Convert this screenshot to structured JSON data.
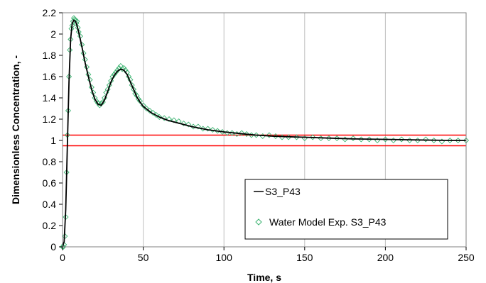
{
  "chart_data": {
    "type": "line",
    "title": "",
    "xlabel": "Time, s",
    "ylabel": "Dimensionless  Concentration, -",
    "xlim": [
      0,
      250
    ],
    "ylim": [
      0,
      2.2
    ],
    "x_ticks": [
      "0",
      "50",
      "100",
      "150",
      "200",
      "250"
    ],
    "y_ticks": [
      "0",
      "0.2",
      "0.4",
      "0.6",
      "0.8",
      "1",
      "1.2",
      "1.4",
      "1.6",
      "1.8",
      "2",
      "2.2"
    ],
    "grid": "vertical",
    "legend_position": "bottom-right",
    "series": [
      {
        "name": "S3_P43",
        "style": "line",
        "color": "#000000",
        "x": [
          0,
          1,
          2,
          3,
          4,
          5,
          6,
          7,
          8,
          9,
          10,
          12,
          14,
          16,
          18,
          20,
          22,
          24,
          26,
          28,
          30,
          32,
          34,
          36,
          38,
          40,
          42,
          44,
          46,
          48,
          50,
          55,
          60,
          65,
          70,
          80,
          90,
          100,
          110,
          120,
          130,
          140,
          150,
          160,
          180,
          200,
          220,
          240,
          250
        ],
        "y": [
          0,
          0.05,
          0.35,
          0.95,
          1.55,
          1.95,
          2.1,
          2.13,
          2.12,
          2.08,
          2.02,
          1.88,
          1.73,
          1.6,
          1.48,
          1.39,
          1.34,
          1.33,
          1.38,
          1.46,
          1.55,
          1.61,
          1.65,
          1.67,
          1.66,
          1.62,
          1.55,
          1.48,
          1.41,
          1.36,
          1.32,
          1.26,
          1.22,
          1.19,
          1.17,
          1.13,
          1.1,
          1.08,
          1.065,
          1.05,
          1.04,
          1.035,
          1.03,
          1.025,
          1.015,
          1.01,
          1.005,
          1.0,
          1.0
        ]
      },
      {
        "name": "Water Model Exp. S3_P43",
        "style": "markers",
        "marker": "diamond",
        "color": "#3cb371",
        "x": [
          0,
          0.5,
          1,
          1.5,
          2,
          2.5,
          3,
          3.5,
          4,
          4.5,
          5,
          5.5,
          6,
          6.5,
          7,
          7.5,
          8,
          8.5,
          9,
          9.5,
          10,
          11,
          12,
          13,
          14,
          15,
          16,
          17,
          18,
          19,
          20,
          21,
          22,
          23,
          24,
          25,
          26,
          27,
          28,
          29,
          30,
          31,
          32,
          33,
          34,
          35,
          36,
          37,
          38,
          39,
          40,
          41,
          42,
          43,
          44,
          45,
          46,
          47,
          48,
          50,
          52,
          54,
          56,
          58,
          60,
          63,
          66,
          69,
          72,
          75,
          78,
          81,
          84,
          87,
          90,
          93,
          96,
          99,
          102,
          105,
          108,
          111,
          114,
          117,
          120,
          124,
          128,
          132,
          136,
          140,
          145,
          150,
          155,
          160,
          165,
          170,
          175,
          180,
          185,
          190,
          195,
          200,
          205,
          210,
          215,
          220,
          225,
          230,
          235,
          240,
          245,
          250
        ],
        "y": [
          0,
          0,
          0.02,
          0.1,
          0.28,
          0.7,
          1.05,
          1.28,
          1.6,
          1.85,
          1.95,
          2.05,
          2.08,
          2.12,
          2.15,
          2.14,
          2.13,
          2.1,
          2.12,
          2.06,
          2.02,
          1.98,
          1.9,
          1.82,
          1.76,
          1.69,
          1.62,
          1.57,
          1.5,
          1.45,
          1.4,
          1.37,
          1.35,
          1.33,
          1.35,
          1.36,
          1.4,
          1.45,
          1.48,
          1.52,
          1.56,
          1.6,
          1.62,
          1.64,
          1.66,
          1.68,
          1.7,
          1.67,
          1.68,
          1.66,
          1.64,
          1.6,
          1.57,
          1.52,
          1.48,
          1.44,
          1.42,
          1.39,
          1.37,
          1.33,
          1.3,
          1.28,
          1.26,
          1.24,
          1.22,
          1.21,
          1.2,
          1.19,
          1.18,
          1.16,
          1.15,
          1.13,
          1.13,
          1.11,
          1.11,
          1.1,
          1.09,
          1.08,
          1.07,
          1.07,
          1.06,
          1.07,
          1.06,
          1.05,
          1.05,
          1.04,
          1.05,
          1.04,
          1.03,
          1.03,
          1.03,
          1.02,
          1.03,
          1.02,
          1.02,
          1.02,
          1.01,
          1.02,
          1.01,
          1.01,
          1.0,
          1.01,
          1.0,
          1.01,
          1.0,
          1.0,
          1.01,
          1.0,
          0.99,
          1.0,
          1.0,
          1.0
        ]
      },
      {
        "name": "",
        "style": "hline",
        "color": "#ff0000",
        "x": [
          0,
          250
        ],
        "y": [
          1.05,
          1.05
        ]
      },
      {
        "name": "",
        "style": "hline",
        "color": "#ff0000",
        "x": [
          0,
          250
        ],
        "y": [
          0.95,
          0.95
        ]
      }
    ],
    "legend": {
      "line_label": "S3_P43",
      "marker_label": "Water Model Exp. S3_P43"
    }
  }
}
